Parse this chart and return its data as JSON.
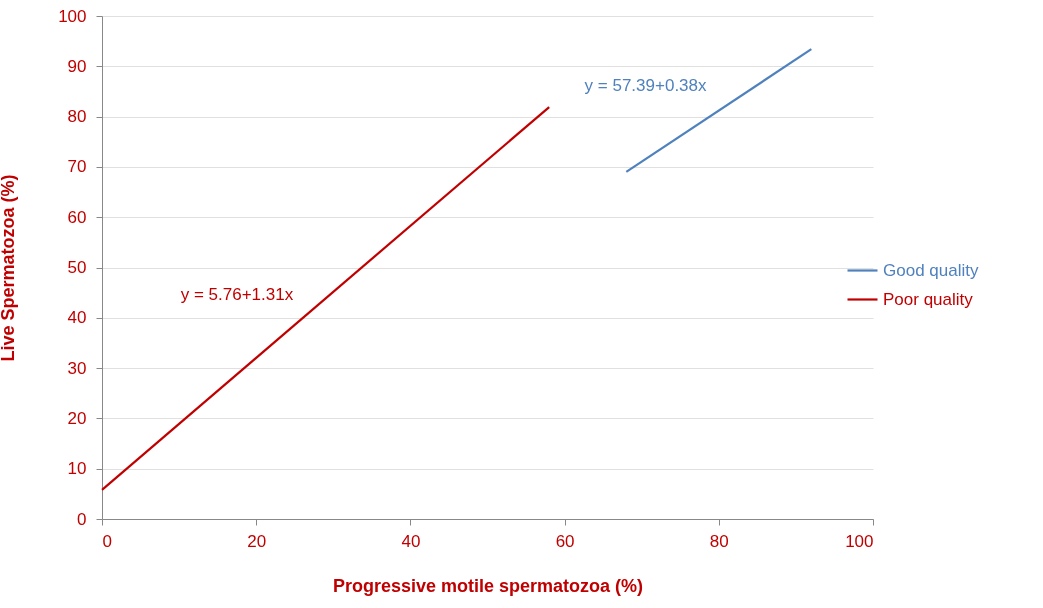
{
  "chart_data": {
    "type": "line",
    "xlabel": "Progressive  motile spermatozoa  (%)",
    "ylabel": "Live Spermatozoa (%)",
    "series": [
      {
        "name": "Good quality",
        "color": "#4f81bd",
        "x": [
          68,
          92
        ],
        "values": [
          69,
          93.4
        ]
      },
      {
        "name": "Poor quality",
        "color": "#c00000",
        "x": [
          0,
          58
        ],
        "values": [
          5.8,
          81.9
        ]
      }
    ],
    "annotations": [
      "y = 57.39+0.38x",
      "y = 5.76+1.31x"
    ],
    "xlim": [
      0,
      100
    ],
    "xticks": [
      0,
      20,
      40,
      60,
      80,
      100
    ],
    "ylim": [
      0,
      100
    ],
    "yticks": [
      0,
      10,
      20,
      30,
      40,
      50,
      60,
      70,
      80,
      90,
      100
    ],
    "grid": "y",
    "legend": "right",
    "marker": "none",
    "line_style": "solid"
  }
}
